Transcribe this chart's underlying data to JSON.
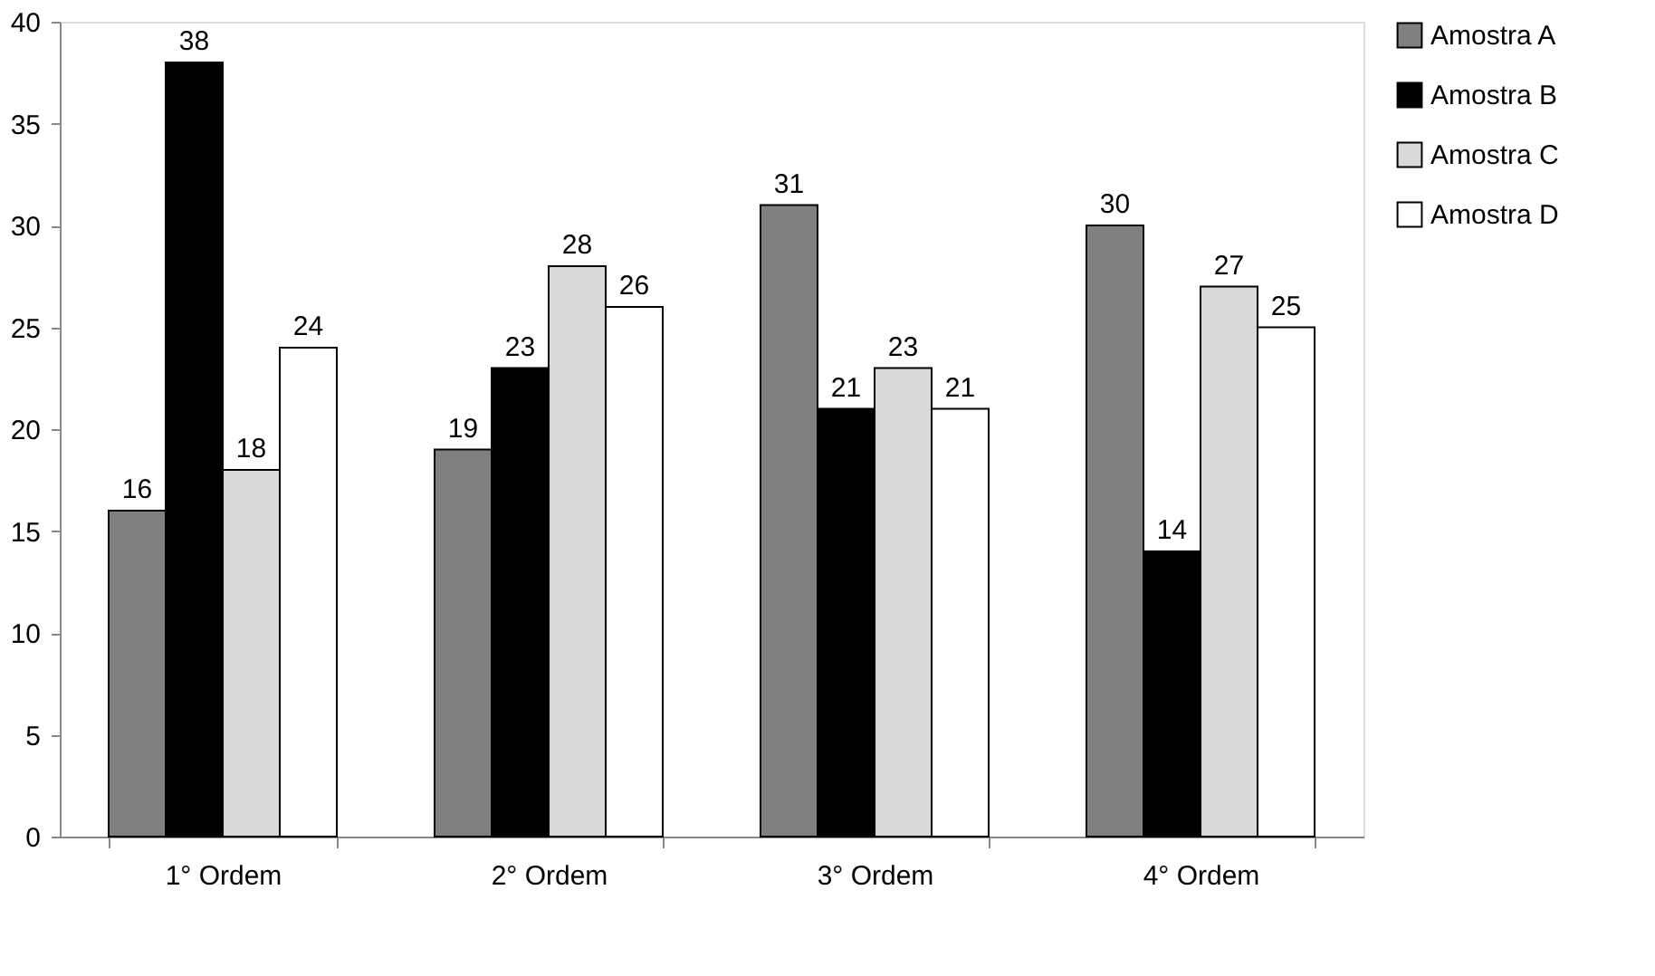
{
  "chart_data": {
    "type": "bar",
    "categories": [
      "1° Ordem",
      "2° Ordem",
      "3° Ordem",
      "4° Ordem"
    ],
    "series": [
      {
        "name": "Amostra A",
        "color": "#808080",
        "values": [
          16,
          19,
          31,
          30
        ]
      },
      {
        "name": "Amostra B",
        "color": "#000000",
        "values": [
          38,
          23,
          21,
          14
        ]
      },
      {
        "name": "Amostra C",
        "color": "#d9d9d9",
        "values": [
          18,
          28,
          23,
          27
        ]
      },
      {
        "name": "Amostra D",
        "color": "#ffffff",
        "values": [
          24,
          26,
          21,
          25
        ]
      }
    ],
    "ylim": [
      0,
      40
    ],
    "yticks": [
      0,
      5,
      10,
      15,
      20,
      25,
      30,
      35,
      40
    ],
    "grid": false,
    "legend": "right",
    "data_labels": true
  }
}
